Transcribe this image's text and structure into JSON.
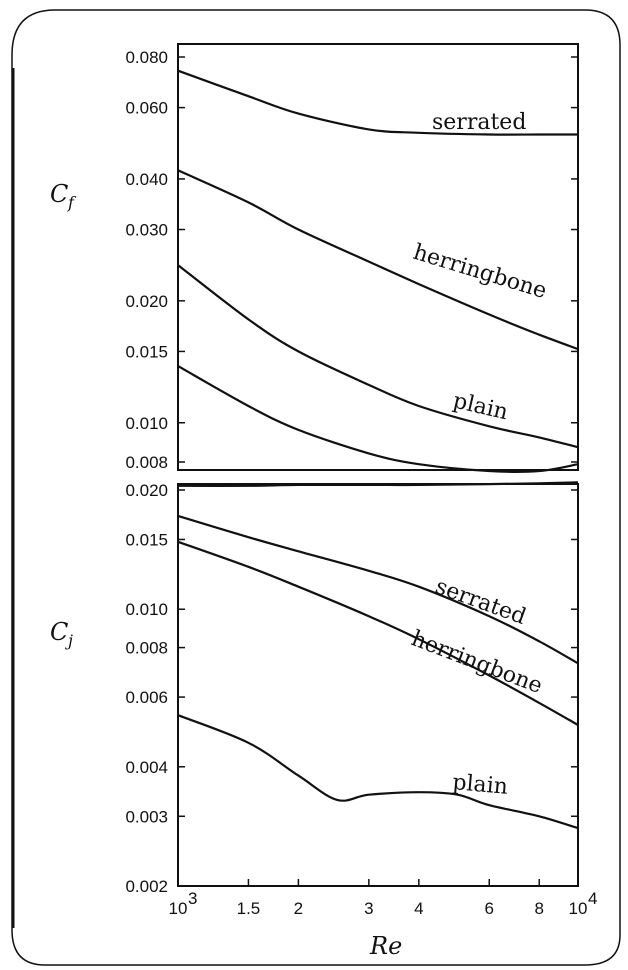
{
  "chart_data": [
    {
      "type": "line",
      "panel": "upper",
      "ylabel": "C",
      "ylabel_sub": "f",
      "xscale": "log",
      "yscale": "log",
      "xlim": [
        1000,
        10000
      ],
      "ylim": [
        0.0075,
        0.09
      ],
      "yticks": [
        0.08,
        0.06,
        0.04,
        0.03,
        0.02,
        0.015,
        0.01,
        0.008
      ],
      "ytick_labels": [
        "0.080",
        "0.060",
        "0.040",
        "0.030",
        "0.020",
        "0.015",
        "0.010",
        "0.008"
      ],
      "grid": false,
      "series": [
        {
          "name": "serrated",
          "x": [
            1000,
            1500,
            2000,
            3000,
            4000,
            6000,
            8000,
            10000
          ],
          "y": [
            0.074,
            0.064,
            0.058,
            0.053,
            0.052,
            0.0515,
            0.0515,
            0.0515
          ]
        },
        {
          "name": "herringbone",
          "x": [
            1000,
            1500,
            2000,
            3000,
            4000,
            6000,
            8000,
            10000
          ],
          "y": [
            0.042,
            0.035,
            0.03,
            0.025,
            0.022,
            0.0185,
            0.0165,
            0.0152
          ]
        },
        {
          "name": "plain",
          "x": [
            1000,
            1500,
            2000,
            3000,
            4000,
            6000,
            8000,
            10000
          ],
          "y": [
            0.0245,
            0.018,
            0.015,
            0.0124,
            0.011,
            0.0098,
            0.0092,
            0.0087
          ]
        },
        {
          "name": "",
          "x": [
            1000,
            1500,
            2000,
            3000,
            4000,
            6000,
            8000,
            10000
          ],
          "y": [
            0.0138,
            0.011,
            0.0096,
            0.0084,
            0.0079,
            0.0076,
            0.0076,
            0.0079
          ]
        }
      ]
    },
    {
      "type": "line",
      "panel": "lower",
      "ylabel": "C",
      "ylabel_sub": "j",
      "xscale": "log",
      "yscale": "log",
      "xlim": [
        1000,
        10000
      ],
      "ylim": [
        0.002,
        0.022
      ],
      "yticks": [
        0.02,
        0.015,
        0.01,
        0.008,
        0.006,
        0.004,
        0.003,
        0.002
      ],
      "ytick_labels": [
        "0.020",
        "0.015",
        "0.010",
        "0.008",
        "0.006",
        "0.004",
        "0.003",
        "0.002"
      ],
      "xticks": [
        1000,
        1500,
        2000,
        3000,
        4000,
        6000,
        8000,
        10000
      ],
      "xtick_labels": [
        "10",
        "1.5",
        "2",
        "3",
        "4",
        "6",
        "8",
        "10"
      ],
      "xtick_exponents": [
        "3",
        "",
        "",
        "",
        "",
        "",
        "",
        "4"
      ],
      "xlabel": "Re",
      "grid": false,
      "series": [
        {
          "name": "",
          "x": [
            1000,
            1500,
            2000,
            3000,
            4000,
            6000,
            8000,
            10000
          ],
          "y": [
            0.0205,
            0.0205,
            0.0206,
            0.0206,
            0.0206,
            0.0207,
            0.0208,
            0.0209
          ]
        },
        {
          "name": "serrated",
          "x": [
            1000,
            1500,
            2000,
            3000,
            4000,
            6000,
            8000,
            10000
          ],
          "y": [
            0.0172,
            0.0152,
            0.014,
            0.0125,
            0.0114,
            0.0096,
            0.0083,
            0.0073
          ]
        },
        {
          "name": "herringbone",
          "x": [
            1000,
            1500,
            2000,
            3000,
            4000,
            6000,
            8000,
            10000
          ],
          "y": [
            0.0148,
            0.0128,
            0.0114,
            0.0096,
            0.0084,
            0.0068,
            0.0058,
            0.0051
          ]
        },
        {
          "name": "plain",
          "x": [
            1000,
            1500,
            2000,
            2500,
            3000,
            4000,
            5000,
            6000,
            8000,
            10000
          ],
          "y": [
            0.0054,
            0.0046,
            0.0038,
            0.0033,
            0.0034,
            0.00345,
            0.0034,
            0.0032,
            0.003,
            0.0028
          ]
        }
      ]
    }
  ]
}
